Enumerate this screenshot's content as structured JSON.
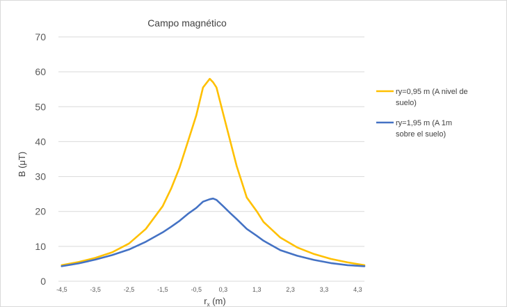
{
  "chart_data": {
    "type": "line",
    "title": "Campo magnético",
    "xlabel": "rx (m)",
    "xlabel_main": "r",
    "xlabel_sub": "x",
    "xlabel_unit": " (m)",
    "ylabel": "B (μT)",
    "ylim": [
      0,
      70
    ],
    "yticks": [
      0,
      10,
      20,
      30,
      40,
      50,
      60,
      70
    ],
    "x_tick_labels": [
      "-4,5",
      "-3,5",
      "-2,5",
      "-1,5",
      "-0,5",
      "0,3",
      "1,3",
      "2,3",
      "3,3",
      "4,3"
    ],
    "x_tick_values": [
      -4.5,
      -3.5,
      -2.5,
      -1.5,
      -0.5,
      0.3,
      1.3,
      2.3,
      3.3,
      4.3
    ],
    "grid": "horizontal",
    "legend_position": "right",
    "x": [
      -4.5,
      -4.0,
      -3.5,
      -3.0,
      -2.5,
      -2.0,
      -1.5,
      -1.25,
      -1.0,
      -0.75,
      -0.5,
      -0.3,
      -0.1,
      0.0,
      0.1,
      0.3,
      0.5,
      0.7,
      1.0,
      1.3,
      1.5,
      2.0,
      2.5,
      3.0,
      3.5,
      4.0,
      4.5
    ],
    "series": [
      {
        "name": "ry=0,95 m (A nivel de suelo)",
        "legend_lines": [
          "ry=0,95 m (A nivel de",
          "suelo)"
        ],
        "color": "#FFC000",
        "values": [
          4.6,
          5.5,
          6.7,
          8.3,
          10.8,
          15.0,
          21.5,
          26.5,
          32.5,
          40.0,
          47.5,
          55.5,
          58.0,
          57.0,
          55.5,
          48.0,
          40.5,
          33.0,
          24.0,
          20.0,
          17.0,
          12.5,
          9.7,
          7.8,
          6.4,
          5.4,
          4.6
        ]
      },
      {
        "name": "ry=1,95 m (A 1m sobre el suelo)",
        "legend_lines": [
          "ry=1,95 m (A 1m",
          "sobre el suelo)"
        ],
        "color": "#4472C4",
        "values": [
          4.3,
          5.1,
          6.2,
          7.5,
          9.1,
          11.3,
          14.0,
          15.6,
          17.3,
          19.3,
          21.0,
          22.8,
          23.5,
          23.7,
          23.3,
          21.5,
          19.6,
          17.8,
          15.0,
          13.0,
          11.6,
          8.9,
          7.3,
          6.1,
          5.2,
          4.6,
          4.3
        ]
      }
    ]
  }
}
